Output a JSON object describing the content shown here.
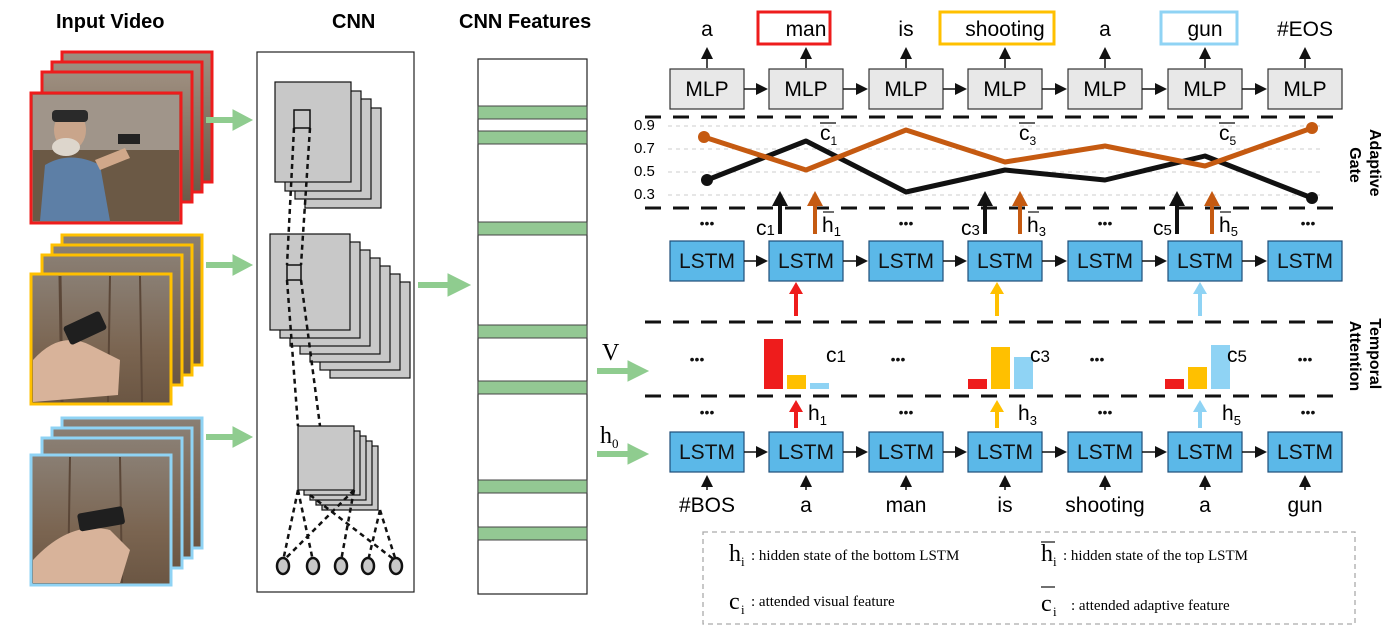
{
  "headers": {
    "input_video": "Input Video",
    "cnn": "CNN",
    "cnn_features": "CNN Features"
  },
  "output_words": [
    "a",
    "man",
    "is",
    "shooting",
    "a",
    "gun",
    "#EOS"
  ],
  "mlp_label": "MLP",
  "lstm_label": "LSTM",
  "input_words": [
    "#BOS",
    "a",
    "man",
    "is",
    "shooting",
    "a",
    "gun"
  ],
  "ellipsis": "•••",
  "side_labels": {
    "adaptive_gate": [
      "Adaptive",
      "Gate"
    ],
    "temporal_attention": [
      "Temporal",
      "Attention"
    ]
  },
  "arrow_inputs": {
    "v": "V",
    "h": "h",
    "h_sub": "0"
  },
  "gate": {
    "ticks": [
      "0.9",
      "0.7",
      "0.5",
      "0.3"
    ],
    "c_bar_labels": [
      {
        "base": "c",
        "sub": "1"
      },
      {
        "base": "c",
        "sub": "3"
      },
      {
        "base": "c",
        "sub": "5"
      }
    ],
    "arrow_labels": [
      {
        "c": "c",
        "c_sub": "1",
        "h": "h",
        "h_sub": "1"
      },
      {
        "c": "c",
        "c_sub": "3",
        "h": "h",
        "h_sub": "3"
      },
      {
        "c": "c",
        "c_sub": "5",
        "h": "h",
        "h_sub": "5"
      }
    ]
  },
  "attention": {
    "c_labels": [
      {
        "base": "c",
        "sub": "1"
      },
      {
        "base": "c",
        "sub": "3"
      },
      {
        "base": "c",
        "sub": "5"
      }
    ],
    "h_labels": [
      {
        "base": "h",
        "sub": "1"
      },
      {
        "base": "h",
        "sub": "3"
      },
      {
        "base": "h",
        "sub": "5"
      }
    ]
  },
  "legend": {
    "items": [
      {
        "sym": "h",
        "sub": "i",
        "text": ": hidden state of the bottom LSTM"
      },
      {
        "sym": "h",
        "sub": "i",
        "text": ": hidden state of the top LSTM"
      },
      {
        "sym": "c",
        "sub": "i",
        "text": ": attended visual feature"
      },
      {
        "sym": "c",
        "sub": "i",
        "text": ": attended adaptive feature"
      }
    ]
  },
  "colors": {
    "red": "#ee1c1c",
    "yellow": "#ffc000",
    "blue": "#8fd3f4",
    "lstm_fill": "#5bb8e8",
    "mlp_fill": "#e8e8e8",
    "green": "#8fcc8f",
    "feature_band": "#93c893",
    "orange": "#c55a11"
  }
}
